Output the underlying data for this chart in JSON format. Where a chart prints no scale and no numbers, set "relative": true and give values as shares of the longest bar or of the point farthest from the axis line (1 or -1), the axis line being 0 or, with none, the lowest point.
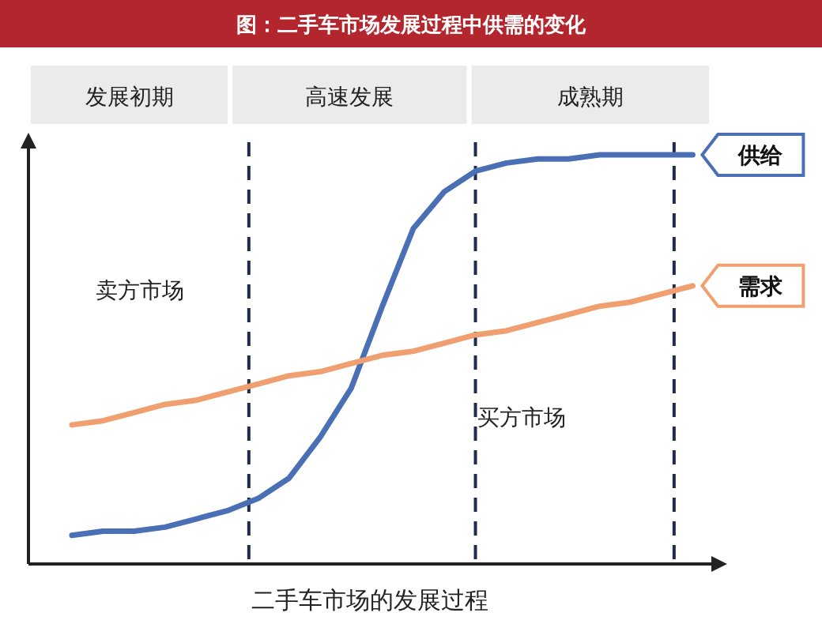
{
  "chart_data": {
    "type": "line",
    "title": "图：二手车市场发展过程中供需的变化",
    "xlabel": "二手车市场的发展过程",
    "relative": true,
    "categories": [
      null,
      null,
      null,
      null,
      null,
      null,
      null,
      null,
      null,
      null,
      null,
      null,
      null,
      null,
      null,
      null,
      null,
      null,
      null,
      null,
      null
    ],
    "series": [
      {
        "name": "供给",
        "color": "#4a6fb5",
        "values": [
          0.07,
          0.08,
          0.08,
          0.09,
          0.11,
          0.13,
          0.16,
          0.21,
          0.31,
          0.43,
          0.63,
          0.82,
          0.91,
          0.96,
          0.98,
          0.99,
          0.99,
          1,
          1,
          1,
          1
        ]
      },
      {
        "name": "需求",
        "color": "#f0a070",
        "values": [
          0.34,
          0.35,
          0.37,
          0.39,
          0.4,
          0.42,
          0.44,
          0.46,
          0.47,
          0.49,
          0.51,
          0.52,
          0.54,
          0.56,
          0.57,
          0.59,
          0.61,
          0.63,
          0.64,
          0.66,
          0.68
        ]
      }
    ],
    "annotations": [
      "发展初期",
      "高速发展",
      "成熟期",
      "卖方市场",
      "买方市场"
    ]
  }
}
